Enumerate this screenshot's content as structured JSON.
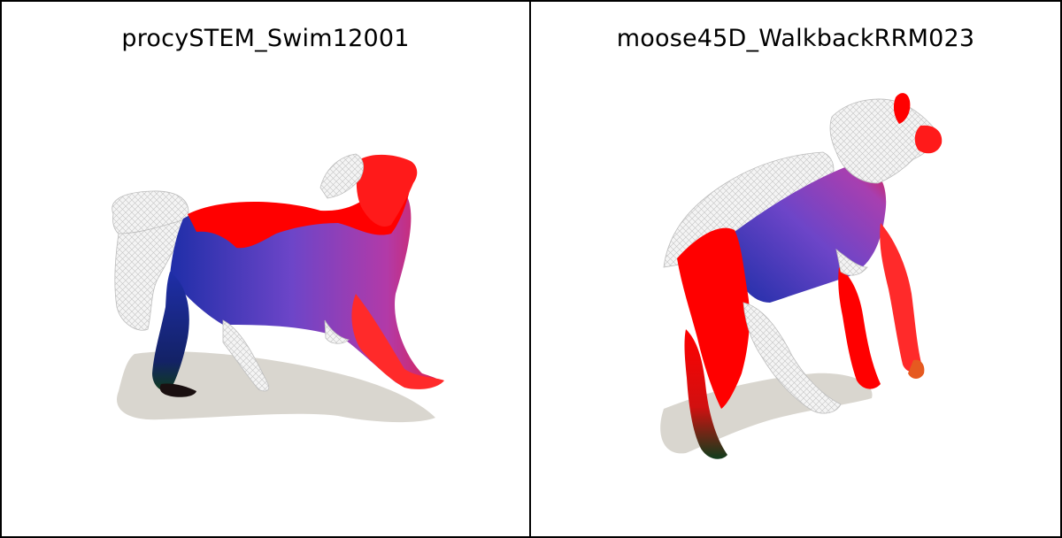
{
  "panels": [
    {
      "title": "procySTEM_Swim12001",
      "subject": "raccoon-mesh-render"
    },
    {
      "title": "moose45D_WalkbackRRM023",
      "subject": "moose-mesh-render"
    }
  ],
  "colors": {
    "background": "#ffffff",
    "border": "#000000",
    "shadow": "#d9d6cf",
    "mesh_white": "#f2f2f2",
    "mesh_line": "#b8b8b8",
    "red": "#ff0000",
    "blue": "#2233aa",
    "purple": "#9a3fd0",
    "dark_green": "#0f3d1c"
  }
}
